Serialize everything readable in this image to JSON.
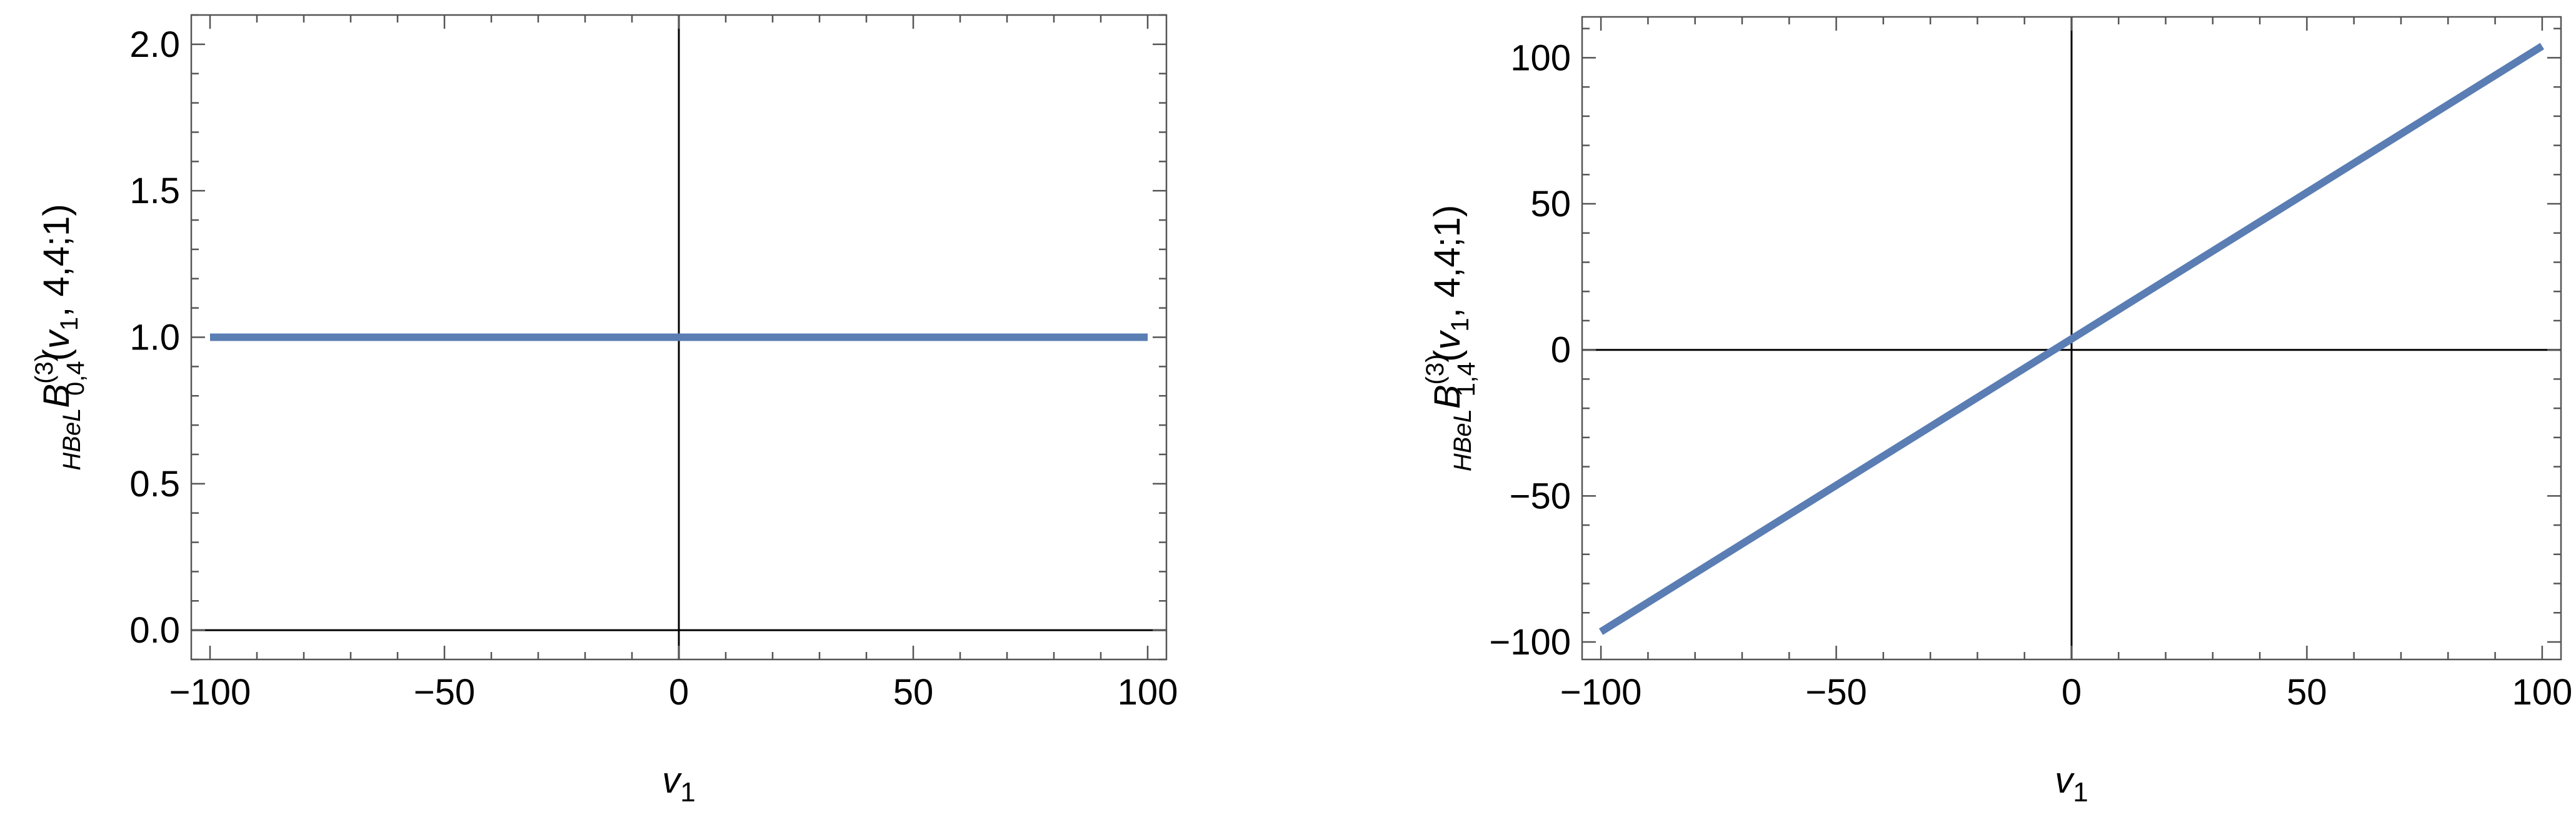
{
  "figure": {
    "panels": 2
  },
  "chart_data": [
    {
      "type": "line",
      "xlabel": {
        "var": "v",
        "sub": "1"
      },
      "ylabel": {
        "pre_sub": "HBeL",
        "func": "B",
        "sup": "(3)",
        "sub": "0,4",
        "args_v": "v",
        "args_v_sub": "1",
        "args_rest": ", 4,4;1)"
      },
      "xlim": [
        -104,
        104
      ],
      "ylim": [
        -0.1,
        2.1
      ],
      "xticks": [
        -100,
        -50,
        0,
        50,
        100
      ],
      "xtick_labels": [
        "−100",
        "−50",
        "0",
        "50",
        "100"
      ],
      "yticks": [
        0.0,
        0.5,
        1.0,
        1.5,
        2.0
      ],
      "ytick_labels": [
        "0.0",
        "0.5",
        "1.0",
        "1.5",
        "2.0"
      ],
      "series": [
        {
          "x": [
            -100,
            100
          ],
          "y": [
            1.0,
            1.0
          ],
          "color": "#5a7db3"
        }
      ]
    },
    {
      "type": "line",
      "xlabel": {
        "var": "v",
        "sub": "1"
      },
      "ylabel": {
        "pre_sub": "HBeL",
        "func": "B",
        "sup": "(3)",
        "sub": "1,4",
        "args_v": "v",
        "args_v_sub": "1",
        "args_rest": ", 4,4;1)"
      },
      "xlim": [
        -104,
        104
      ],
      "ylim": [
        -106,
        114
      ],
      "xticks": [
        -100,
        -50,
        0,
        50,
        100
      ],
      "xtick_labels": [
        "−100",
        "−50",
        "0",
        "50",
        "100"
      ],
      "yticks": [
        -100,
        -50,
        0,
        50,
        100
      ],
      "ytick_labels": [
        "−100",
        "−50",
        "0",
        "50",
        "100"
      ],
      "series": [
        {
          "x": [
            -100,
            100
          ],
          "y": [
            -96.5,
            104
          ],
          "color": "#5a7db3"
        }
      ]
    }
  ]
}
